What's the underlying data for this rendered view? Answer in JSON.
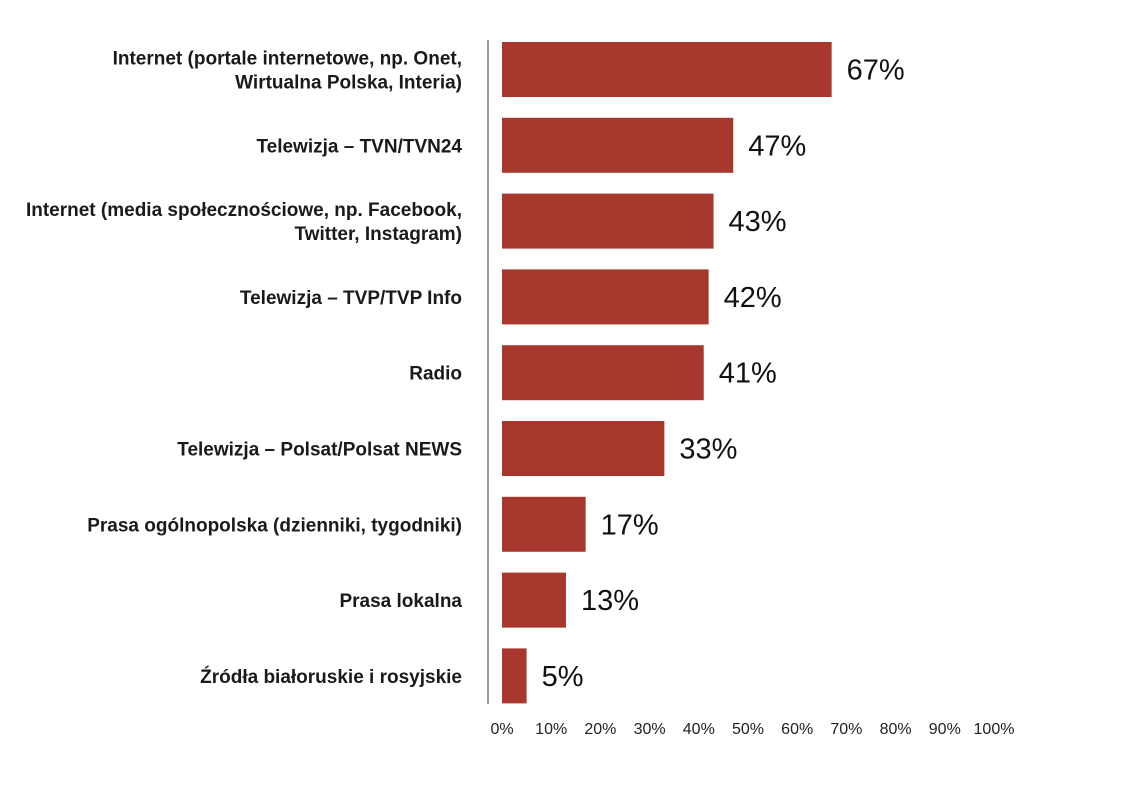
{
  "chart_data": {
    "type": "bar",
    "orientation": "horizontal",
    "categories": [
      [
        "Internet (portale internetowe, np. Onet,",
        "Wirtualna Polska, Interia)"
      ],
      [
        "Telewizja – TVN/TVN24"
      ],
      [
        "Internet (media społecznościowe, np. Facebook,",
        "Twitter, Instagram)"
      ],
      [
        "Telewizja – TVP/TVP Info"
      ],
      [
        "Radio"
      ],
      [
        "Telewizja – Polsat/Polsat NEWS"
      ],
      [
        "Prasa ogólnopolska (dzienniki, tygodniki)"
      ],
      [
        "Prasa lokalna"
      ],
      [
        "Źródła białoruskie i rosyjskie"
      ]
    ],
    "values": [
      67,
      47,
      43,
      42,
      41,
      33,
      17,
      13,
      5
    ],
    "value_labels": [
      "67%",
      "47%",
      "43%",
      "42%",
      "41%",
      "33%",
      "17%",
      "13%",
      "5%"
    ],
    "xlim": [
      0,
      100
    ],
    "x_ticks": [
      "0%",
      "10%",
      "20%",
      "30%",
      "40%",
      "50%",
      "60%",
      "70%",
      "80%",
      "90%",
      "100%"
    ],
    "bar_color": "#a8382d",
    "axis_color": "#9a9a9a",
    "grid": false,
    "legend": "none"
  }
}
